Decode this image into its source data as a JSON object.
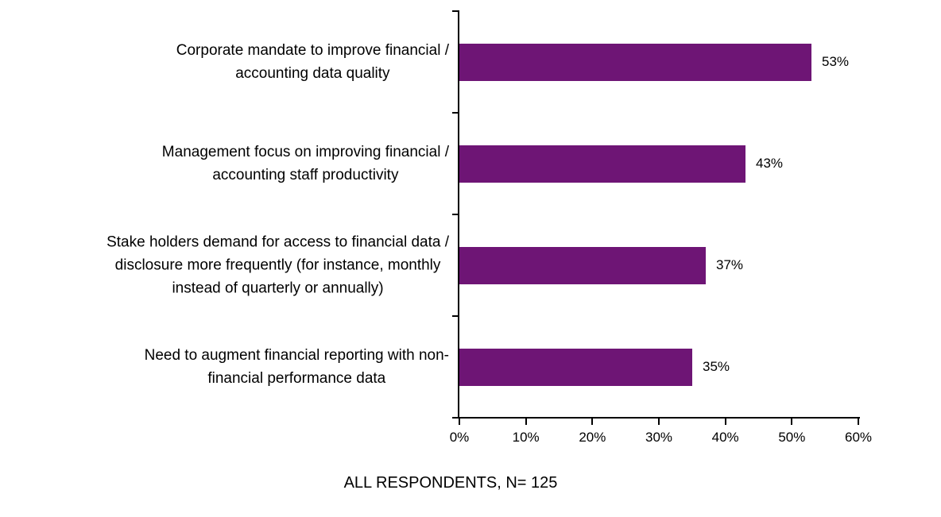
{
  "chart_data": {
    "type": "bar",
    "orientation": "horizontal",
    "title": "",
    "xlabel": "",
    "ylabel": "",
    "xlim": [
      0,
      60
    ],
    "grid": false,
    "legend": false,
    "bar_color": "#6E1575",
    "axis_color": "#000000",
    "categories": [
      "Corporate mandate to improve financial / accounting data quality",
      "Management focus on improving financial / accounting staff productivity",
      "Stake holders demand for access to financial data / disclosure more frequently (for instance, monthly instead of quarterly or annually)",
      "Need to augment financial reporting with non-financial performance data"
    ],
    "category_lines": [
      [
        "Corporate mandate to improve financial /",
        "accounting data quality"
      ],
      [
        "Management focus on improving financial /",
        "accounting staff productivity"
      ],
      [
        "Stake holders demand for access to financial data /",
        "disclosure more frequently (for instance, monthly",
        "instead of quarterly or annually)"
      ],
      [
        "Need to augment financial reporting with non-",
        "financial performance data"
      ]
    ],
    "values": [
      53,
      43,
      37,
      35
    ],
    "value_labels": [
      "53%",
      "43%",
      "37%",
      "35%"
    ],
    "x_ticks": [
      0,
      10,
      20,
      30,
      40,
      50,
      60
    ],
    "x_tick_labels": [
      "0%",
      "10%",
      "20%",
      "30%",
      "40%",
      "50%",
      "60%"
    ],
    "caption": "ALL RESPONDENTS, N= 125"
  }
}
